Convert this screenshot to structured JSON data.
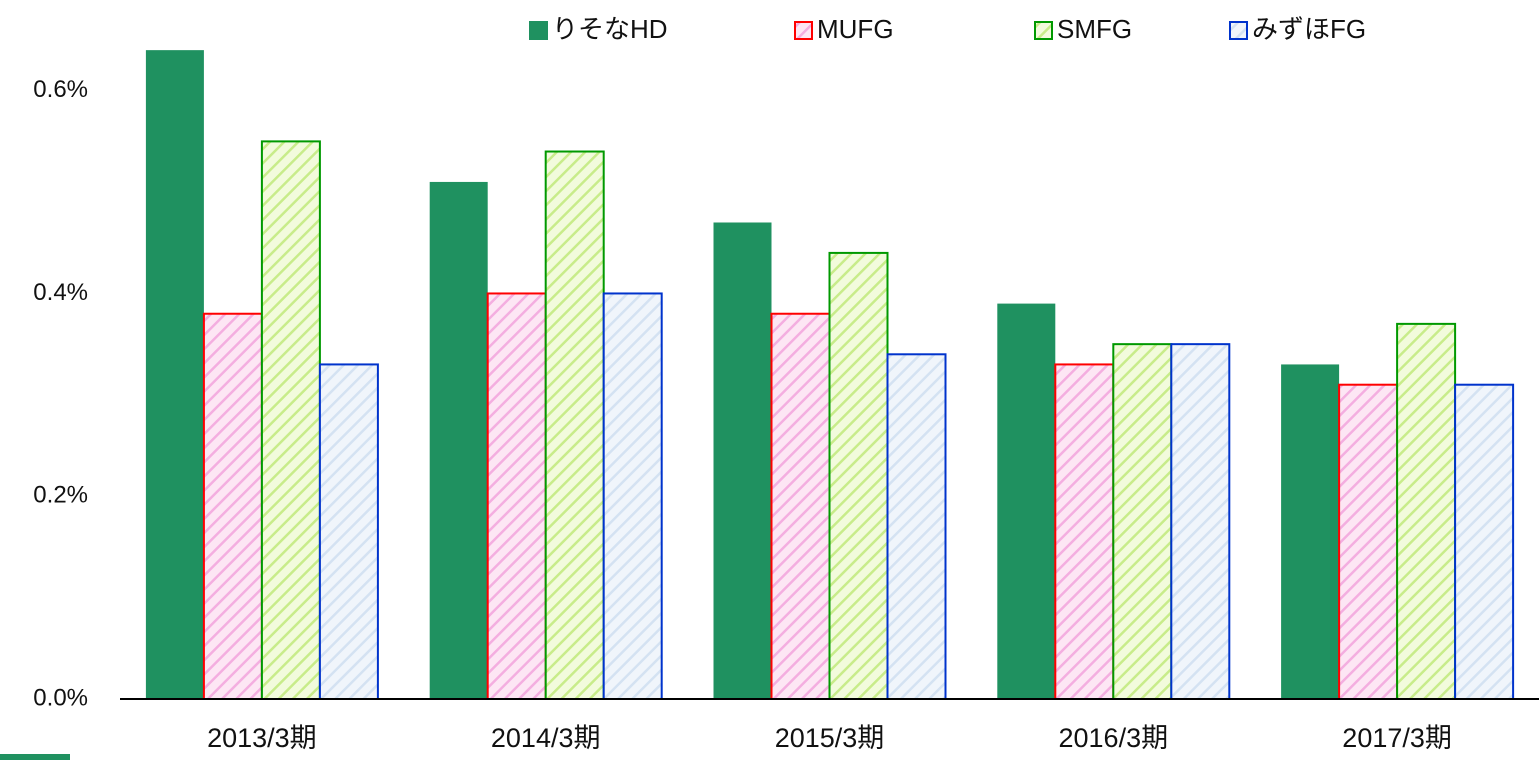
{
  "chart_data": {
    "type": "bar",
    "categories": [
      "2013/3期",
      "2014/3期",
      "2015/3期",
      "2016/3期",
      "2017/3期"
    ],
    "series": [
      {
        "name": "りそなHD",
        "color": "#1f9160",
        "values": [
          0.64,
          0.51,
          0.47,
          0.39,
          0.33
        ]
      },
      {
        "name": "MUFG",
        "color": "#ff0000",
        "values": [
          0.38,
          0.4,
          0.38,
          0.33,
          0.31
        ]
      },
      {
        "name": "SMFG",
        "color": "#009900",
        "values": [
          0.55,
          0.54,
          0.44,
          0.35,
          0.37
        ]
      },
      {
        "name": "みずほFG",
        "color": "#0033cc",
        "values": [
          0.33,
          0.4,
          0.34,
          0.35,
          0.31
        ]
      }
    ],
    "ylim": [
      0,
      0.65
    ],
    "yticks": [
      {
        "value": 0,
        "label": "0.0%"
      },
      {
        "value": 0.2,
        "label": "0.2%"
      },
      {
        "value": 0.4,
        "label": "0.4%"
      },
      {
        "value": 0.6,
        "label": "0.6%"
      }
    ],
    "legend": "top"
  }
}
